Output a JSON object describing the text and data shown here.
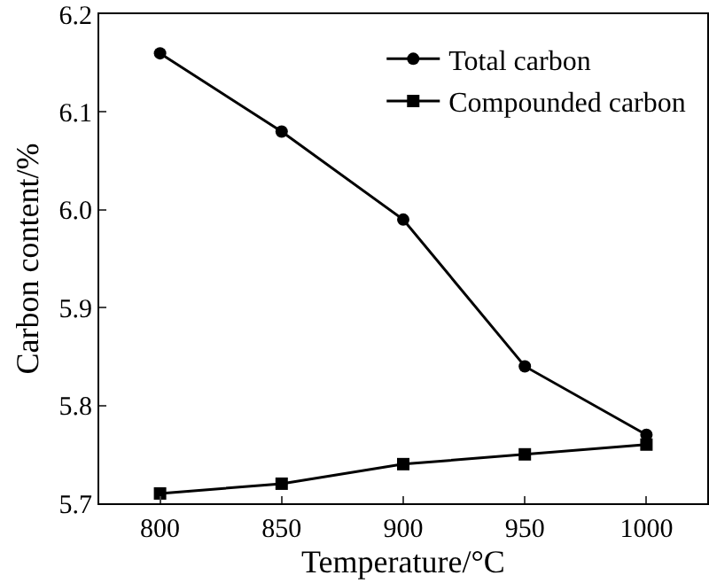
{
  "chart_data": {
    "type": "line",
    "xlabel": "Temperature/°C",
    "ylabel": "Carbon content/%",
    "x": [
      800,
      850,
      900,
      950,
      1000
    ],
    "series": [
      {
        "name": "Total carbon",
        "color": "#000000",
        "marker": "circle",
        "values": [
          6.16,
          6.08,
          5.99,
          5.84,
          5.77
        ]
      },
      {
        "name": "Compounded carbon",
        "color": "#000000",
        "marker": "square",
        "values": [
          5.71,
          5.72,
          5.74,
          5.75,
          5.76
        ]
      }
    ],
    "xlim": [
      775,
      1025
    ],
    "xticks": [
      800,
      850,
      900,
      950,
      1000
    ],
    "ylim": [
      5.7,
      6.2
    ],
    "yticks": [
      5.7,
      5.8,
      5.9,
      {
        "value": 6,
        "label": "6.0"
      },
      6.1,
      6.2
    ],
    "legend": "top right",
    "grid": false,
    "line_style": "solid"
  }
}
